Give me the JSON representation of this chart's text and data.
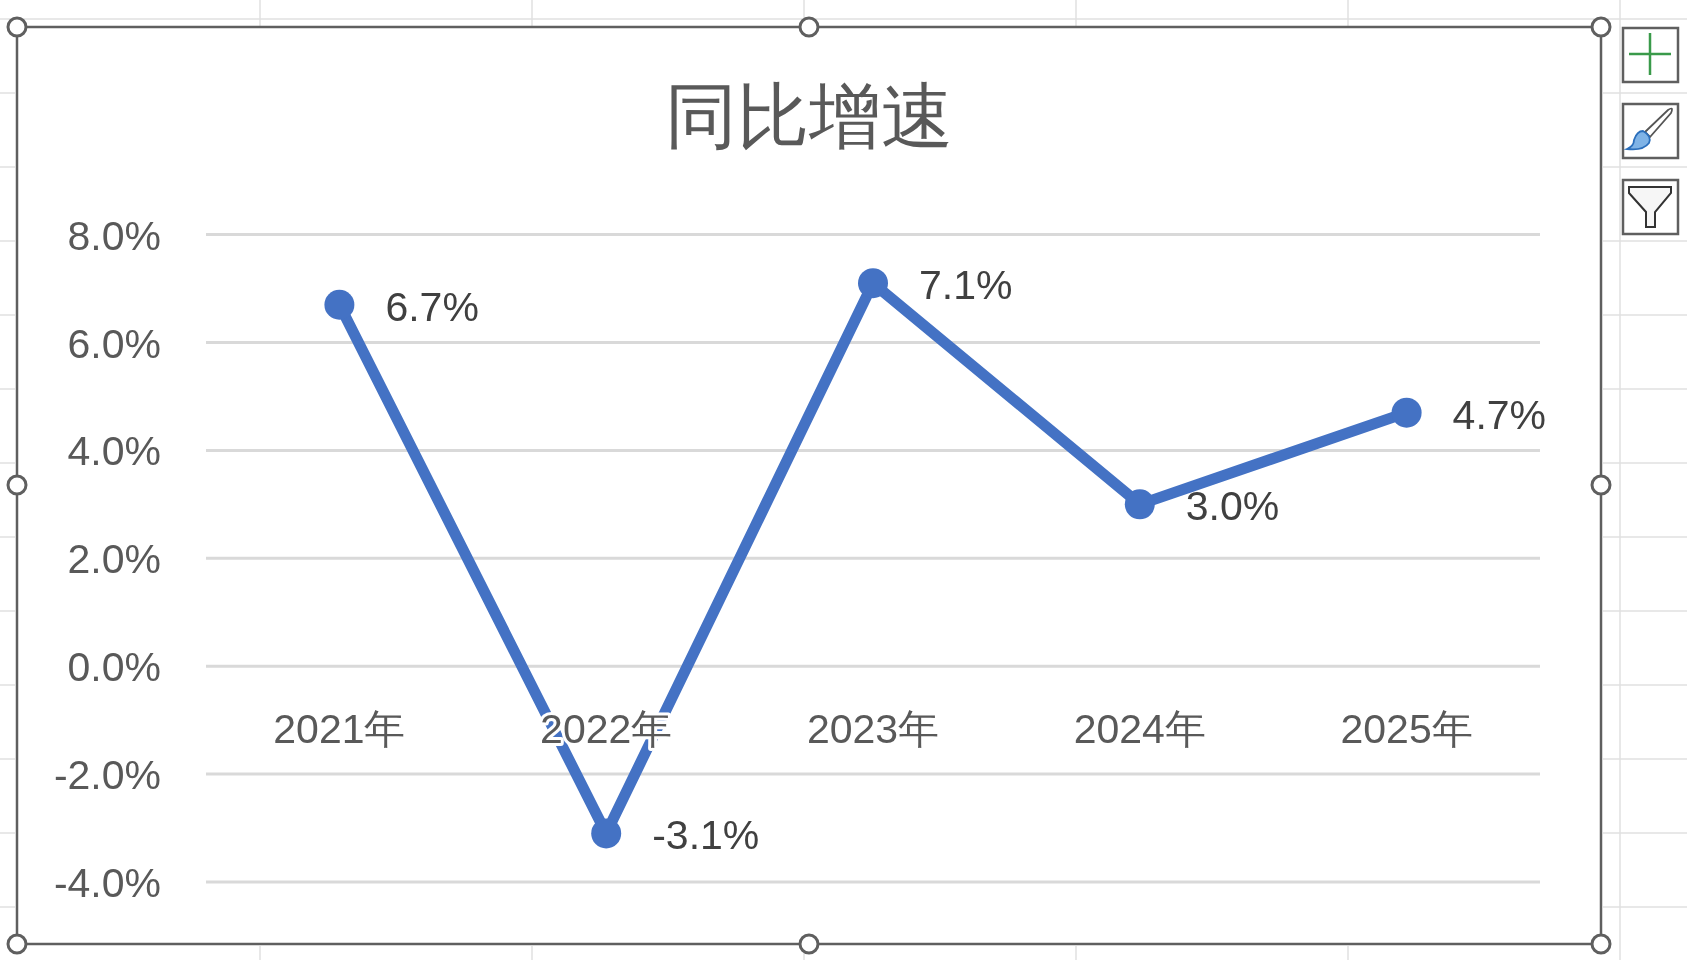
{
  "chart_data": {
    "type": "line",
    "title": "同比增速",
    "categories": [
      "2021年",
      "2022年",
      "2023年",
      "2024年",
      "2025年"
    ],
    "values": [
      6.7,
      -3.1,
      7.1,
      3.0,
      4.7
    ],
    "color": "#4472c4",
    "value_labels": [
      "6.7%",
      "-3.1%",
      "7.1%",
      "3.0%",
      "4.7%"
    ],
    "ylim": [
      -4,
      8
    ],
    "yticks": [
      {
        "value": -4,
        "label": "-4.0%"
      },
      {
        "value": -2,
        "label": "-2.0%"
      },
      {
        "value": 0,
        "label": "0.0%"
      },
      {
        "value": 2,
        "label": "2.0%"
      },
      {
        "value": 4,
        "label": "4.0%"
      },
      {
        "value": 6,
        "label": "6.0%"
      },
      {
        "value": 8,
        "label": "8.0%"
      }
    ],
    "grid": "y",
    "marker": "circle",
    "line_style": "solid"
  }
}
